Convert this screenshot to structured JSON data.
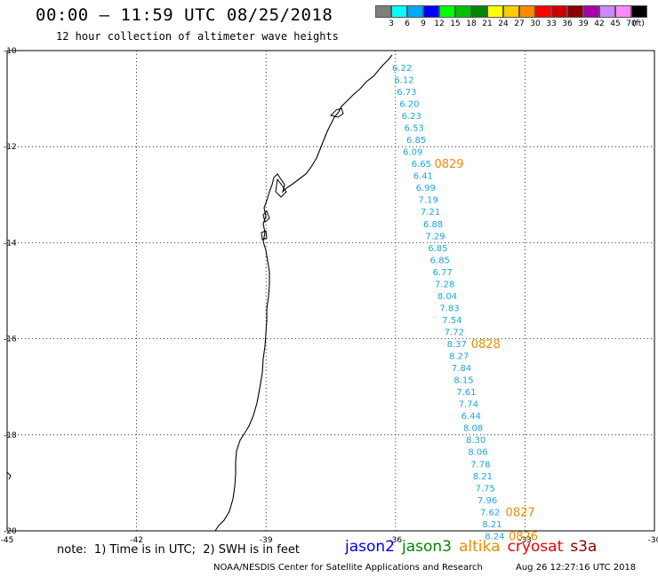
{
  "header": {
    "title": "00:00 – 11:59 UTC 08/25/2018",
    "subtitle": "12 hour collection of altimeter wave heights"
  },
  "colorbar": {
    "unit": "(ft)",
    "bins": [
      {
        "label": "3",
        "color": "#7f7f7f"
      },
      {
        "label": "6",
        "color": "#00ffff"
      },
      {
        "label": "9",
        "color": "#00a8ff"
      },
      {
        "label": "12",
        "color": "#0000ff"
      },
      {
        "label": "15",
        "color": "#00ff00"
      },
      {
        "label": "18",
        "color": "#00c000"
      },
      {
        "label": "21",
        "color": "#008800"
      },
      {
        "label": "24",
        "color": "#ffff00"
      },
      {
        "label": "27",
        "color": "#ffcc00"
      },
      {
        "label": "30",
        "color": "#ff8800"
      },
      {
        "label": "33",
        "color": "#ff0000"
      },
      {
        "label": "36",
        "color": "#cc0000"
      },
      {
        "label": "39",
        "color": "#880000"
      },
      {
        "label": "42",
        "color": "#aa00aa"
      },
      {
        "label": "45",
        "color": "#cc88ff"
      },
      {
        "label": "70",
        "color": "#ff88ff"
      },
      {
        "label": "",
        "color": "#000000"
      }
    ]
  },
  "map": {
    "lat_range": [
      -20,
      -10
    ],
    "lon_range": [
      -45,
      -30
    ],
    "lat_ticks": [
      "-10",
      "-12",
      "-14",
      "-16",
      "-18",
      "-20"
    ],
    "lon_ticks": [
      "-45",
      "-42",
      "-39",
      "-36",
      "-33",
      "-30"
    ],
    "track_color": "#1aa6d8",
    "date_color": "#f08c00",
    "swh": [
      {
        "lat": -10.35,
        "lon": -35.85,
        "v": "6.22"
      },
      {
        "lat": -10.6,
        "lon": -35.8,
        "v": "6.12"
      },
      {
        "lat": -10.85,
        "lon": -35.74,
        "v": "6.73"
      },
      {
        "lat": -11.1,
        "lon": -35.68,
        "v": "6.20"
      },
      {
        "lat": -11.35,
        "lon": -35.63,
        "v": "6.23"
      },
      {
        "lat": -11.6,
        "lon": -35.57,
        "v": "6.53"
      },
      {
        "lat": -11.85,
        "lon": -35.52,
        "v": "6.85"
      },
      {
        "lat": -12.1,
        "lon": -35.6,
        "v": "6.09"
      },
      {
        "lat": -12.35,
        "lon": -35.4,
        "v": "6.65"
      },
      {
        "lat": -12.6,
        "lon": -35.36,
        "v": "6.41"
      },
      {
        "lat": -12.85,
        "lon": -35.3,
        "v": "6.99"
      },
      {
        "lat": -13.1,
        "lon": -35.24,
        "v": "7.19"
      },
      {
        "lat": -13.35,
        "lon": -35.19,
        "v": "7.21"
      },
      {
        "lat": -13.6,
        "lon": -35.13,
        "v": "6.88"
      },
      {
        "lat": -13.85,
        "lon": -35.08,
        "v": "7.29"
      },
      {
        "lat": -14.1,
        "lon": -35.02,
        "v": "6.85"
      },
      {
        "lat": -14.35,
        "lon": -34.97,
        "v": "6.85"
      },
      {
        "lat": -14.6,
        "lon": -34.91,
        "v": "6.77"
      },
      {
        "lat": -14.85,
        "lon": -34.86,
        "v": "7.28"
      },
      {
        "lat": -15.1,
        "lon": -34.8,
        "v": "8.04"
      },
      {
        "lat": -15.35,
        "lon": -34.75,
        "v": "7.83"
      },
      {
        "lat": -15.6,
        "lon": -34.69,
        "v": "7.54"
      },
      {
        "lat": -15.85,
        "lon": -34.64,
        "v": "7.72"
      },
      {
        "lat": -16.1,
        "lon": -34.58,
        "v": "8.37"
      },
      {
        "lat": -16.35,
        "lon": -34.53,
        "v": "8.27"
      },
      {
        "lat": -16.6,
        "lon": -34.47,
        "v": "7.84"
      },
      {
        "lat": -16.85,
        "lon": -34.42,
        "v": "8.15"
      },
      {
        "lat": -17.1,
        "lon": -34.36,
        "v": "7.61"
      },
      {
        "lat": -17.35,
        "lon": -34.31,
        "v": "7.74"
      },
      {
        "lat": -17.6,
        "lon": -34.25,
        "v": "6.44"
      },
      {
        "lat": -17.85,
        "lon": -34.2,
        "v": "8.08"
      },
      {
        "lat": -18.1,
        "lon": -34.14,
        "v": "8.30"
      },
      {
        "lat": -18.35,
        "lon": -34.09,
        "v": "8.06"
      },
      {
        "lat": -18.6,
        "lon": -34.03,
        "v": "7.78"
      },
      {
        "lat": -18.85,
        "lon": -33.98,
        "v": "8.21"
      },
      {
        "lat": -19.1,
        "lon": -33.92,
        "v": "7.75"
      },
      {
        "lat": -19.35,
        "lon": -33.87,
        "v": "7.96"
      },
      {
        "lat": -19.6,
        "lon": -33.81,
        "v": "7.62"
      },
      {
        "lat": -19.85,
        "lon": -33.76,
        "v": "8.21"
      },
      {
        "lat": -20.1,
        "lon": -33.7,
        "v": "8.24"
      }
    ],
    "dates": [
      {
        "lat": -12.35,
        "lon": -35.1,
        "v": "0829"
      },
      {
        "lat": -16.1,
        "lon": -34.25,
        "v": "0828"
      },
      {
        "lat": -19.6,
        "lon": -33.45,
        "v": "0827"
      },
      {
        "lat": -20.1,
        "lon": -33.38,
        "v": "0826"
      }
    ]
  },
  "footer": {
    "note": "note:  1) Time is in UTC;  2) SWH is in feet",
    "missions": [
      {
        "name": "jason2",
        "color": "#0000ee"
      },
      {
        "name": "jason3",
        "color": "#008800"
      },
      {
        "name": "altika",
        "color": "#f08c00"
      },
      {
        "name": "cryosat",
        "color": "#ee0000"
      },
      {
        "name": "s3a",
        "color": "#880000"
      }
    ],
    "credit": "NOAA/NESDIS Center for Satellite Applications and Research",
    "timestamp": "Aug 26 12:27:16 UTC 2018"
  }
}
